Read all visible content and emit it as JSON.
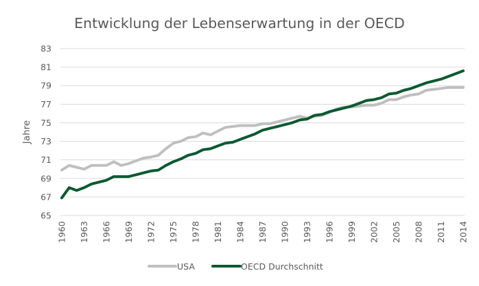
{
  "chart_data": {
    "type": "line",
    "title": "Entwicklung der Lebenserwartung  in der OECD",
    "xlabel": "",
    "ylabel": "Jahre",
    "ylim": [
      65,
      83
    ],
    "yticks": [
      65,
      67,
      69,
      71,
      73,
      75,
      77,
      79,
      81,
      83
    ],
    "ytick_labels": [
      "65",
      "67",
      "69",
      "71",
      "73",
      "75",
      "77",
      "79",
      "81",
      "83"
    ],
    "x": [
      1960,
      1961,
      1962,
      1963,
      1964,
      1965,
      1966,
      1967,
      1968,
      1969,
      1970,
      1971,
      1972,
      1973,
      1974,
      1975,
      1976,
      1977,
      1978,
      1979,
      1980,
      1981,
      1982,
      1983,
      1984,
      1985,
      1986,
      1987,
      1988,
      1989,
      1990,
      1991,
      1992,
      1993,
      1994,
      1995,
      1996,
      1997,
      1998,
      1999,
      2000,
      2001,
      2002,
      2003,
      2004,
      2005,
      2006,
      2007,
      2008,
      2009,
      2010,
      2011,
      2012,
      2013,
      2014
    ],
    "xtick_labels": [
      "1960",
      "1963",
      "1966",
      "1969",
      "1972",
      "1975",
      "1978",
      "1981",
      "1984",
      "1987",
      "1990",
      "1993",
      "1996",
      "1999",
      "2002",
      "2005",
      "2008",
      "2011",
      "2014"
    ],
    "grid": true,
    "legend": "bottom",
    "series": [
      {
        "name": "USA",
        "color": "#bfbfbf",
        "values": [
          69.9,
          70.4,
          70.2,
          70.0,
          70.4,
          70.4,
          70.4,
          70.8,
          70.4,
          70.6,
          70.9,
          71.2,
          71.3,
          71.5,
          72.2,
          72.8,
          73.0,
          73.4,
          73.5,
          73.9,
          73.7,
          74.1,
          74.5,
          74.6,
          74.7,
          74.7,
          74.7,
          74.9,
          74.9,
          75.1,
          75.3,
          75.5,
          75.7,
          75.5,
          75.7,
          75.8,
          76.1,
          76.5,
          76.7,
          76.7,
          76.8,
          76.9,
          76.9,
          77.1,
          77.5,
          77.5,
          77.8,
          78.0,
          78.1,
          78.5,
          78.6,
          78.7,
          78.8,
          78.8,
          78.8
        ]
      },
      {
        "name": "OECD Durchschnitt",
        "color": "#0b5931",
        "values": [
          66.9,
          68.0,
          67.7,
          68.0,
          68.4,
          68.6,
          68.8,
          69.2,
          69.2,
          69.2,
          69.4,
          69.6,
          69.8,
          69.9,
          70.4,
          70.8,
          71.1,
          71.5,
          71.7,
          72.1,
          72.2,
          72.5,
          72.8,
          72.9,
          73.2,
          73.5,
          73.8,
          74.2,
          74.4,
          74.6,
          74.8,
          75.0,
          75.3,
          75.4,
          75.8,
          75.9,
          76.2,
          76.4,
          76.6,
          76.8,
          77.1,
          77.4,
          77.5,
          77.7,
          78.1,
          78.2,
          78.5,
          78.7,
          79.0,
          79.3,
          79.5,
          79.7,
          80.0,
          80.3,
          80.6
        ]
      }
    ]
  }
}
